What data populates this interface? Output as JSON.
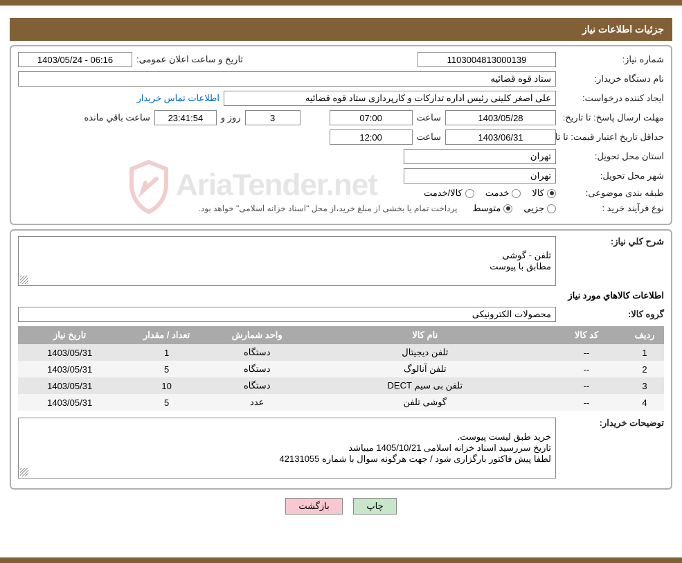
{
  "colors": {
    "header_bg": "#826037",
    "header_text": "#ffffff",
    "border_box": "#b0b0b0",
    "table_header_bg": "#aaaaaa",
    "table_header_text": "#ffffff",
    "row_even": "#e6e6e6",
    "row_odd": "#f5f5f5",
    "link": "#0066cc",
    "btn_print": "#c8e6c9",
    "btn_back": "#f8c8d0",
    "watermark": "rgba(150,150,150,0.25)"
  },
  "header_title": "جزئیات اطلاعات نیاز",
  "labels": {
    "need_no": "شماره نیاز:",
    "announce_datetime": "تاریخ و ساعت اعلان عمومی:",
    "buyer_org": "نام دستگاه خریدار:",
    "requester": "ایجاد کننده درخواست:",
    "buyer_contact": "اطلاعات تماس خریدار",
    "deadline_from": "مهلت ارسال پاسخ:  تا تاریخ:",
    "hour": "ساعت",
    "days_and": "روز و",
    "hours_remaining": "ساعت باقي مانده",
    "price_validity": "حداقل تاریخ اعتبار قیمت: تا تاریخ:",
    "delivery_province": "استان محل تحویل:",
    "delivery_city": "شهر محل تحویل:",
    "subject_class": "طبقه بندی موضوعی:",
    "purchase_type": "نوع فرآیند خرید :",
    "radio_goods": "کالا",
    "radio_service": "خدمت",
    "radio_goods_service": "کالا/خدمت",
    "radio_partial": "جزیی",
    "radio_medium": "متوسط",
    "summary": "شرح کلي نياز:",
    "items_header": "اطلاعات کالاهاي مورد نياز",
    "goods_group": "گروه کالا:",
    "buyer_notes": "توضيحات خریدار:",
    "btn_print": "چاپ",
    "btn_back": "بازگشت"
  },
  "values": {
    "need_no": "1103004813000139",
    "announce_datetime": "1403/05/24 - 06:16",
    "buyer_org": "ستاد قوه قضائیه",
    "requester": "علی اصغر کلینی رئیس اداره تدارکات و کارپردازی ستاد قوه قضائیه",
    "deadline_date": "1403/05/28",
    "deadline_time": "07:00",
    "remaining_days": "3",
    "remaining_time": "23:41:54",
    "price_validity_date": "1403/06/31",
    "price_validity_time": "12:00",
    "delivery_province": "تهران",
    "delivery_city": "تهران",
    "subject_selected": "کالا",
    "purchase_selected": "متوسط",
    "purchase_note": "پرداخت تمام یا بخشی از مبلغ خرید،از محل \"اسناد خزانه اسلامی\" خواهد بود.",
    "summary_text": "تلفن - گوشی\nمطابق با پیوست",
    "goods_group": "محصولات الکترونیکی",
    "buyer_notes_text": "خرید طبق لیست پیوست.\nتاریخ سررسید اسناد خزانه اسلامی 1405/10/21 میباشد\nلطفا پیش فاکتور بارگزاری شود / جهت هرگونه سوال با شماره 42131055"
  },
  "table": {
    "columns": [
      "ردیف",
      "کد کالا",
      "نام کالا",
      "واحد شمارش",
      "تعداد / مقدار",
      "تاريخ نياز"
    ],
    "col_widths": [
      "6%",
      "12%",
      "38%",
      "14%",
      "14%",
      "16%"
    ],
    "rows": [
      [
        "1",
        "--",
        "تلفن دیجیتال",
        "دستگاه",
        "1",
        "1403/05/31"
      ],
      [
        "2",
        "--",
        "تلفن آنالوگ",
        "دستگاه",
        "5",
        "1403/05/31"
      ],
      [
        "3",
        "--",
        "تلفن بی سیم DECT",
        "دستگاه",
        "10",
        "1403/05/31"
      ],
      [
        "4",
        "--",
        "گوشی تلفن",
        "عدد",
        "5",
        "1403/05/31"
      ]
    ]
  },
  "watermark_text": "AriaTender.net"
}
